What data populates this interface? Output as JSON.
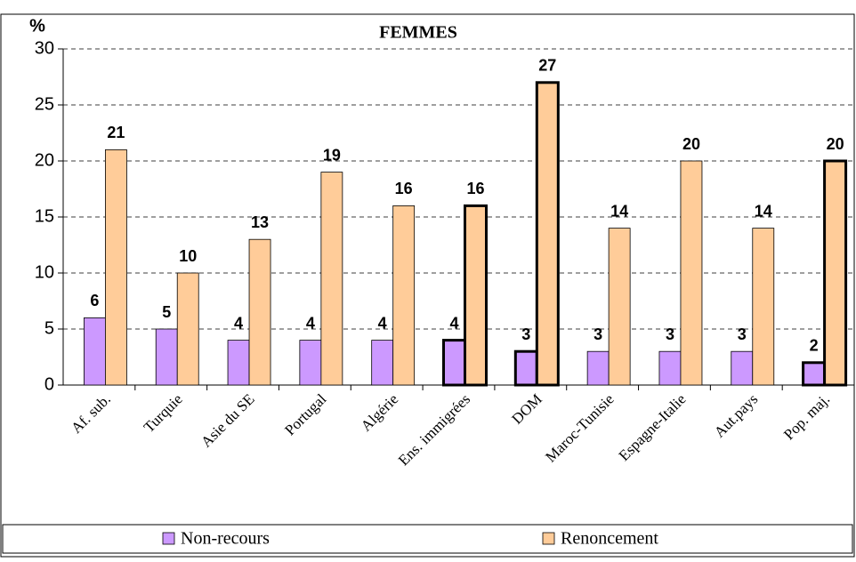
{
  "chart_data": {
    "type": "bar",
    "title": "FEMMES",
    "y_label": "%",
    "categories": [
      "Af. sub.",
      "Turquie",
      "Asie du SE",
      "Portugal",
      "Algérie",
      "Ens. immigrées",
      "DOM",
      "Maroc-Tunisie",
      "Espagne-Italie",
      "Aut.pays",
      "Pop. maj."
    ],
    "series": [
      {
        "name": "Non-recours",
        "color": "#cc99ff",
        "values": [
          6,
          5,
          4,
          4,
          4,
          4,
          3,
          3,
          3,
          3,
          2
        ]
      },
      {
        "name": "Renoncement",
        "color": "#ffcc99",
        "values": [
          21,
          10,
          13,
          19,
          16,
          16,
          27,
          14,
          20,
          14,
          20
        ]
      }
    ],
    "outlined": [
      false,
      false,
      false,
      false,
      false,
      true,
      true,
      false,
      false,
      false,
      true
    ],
    "ylim": [
      0,
      30
    ],
    "yticks": [
      0,
      5,
      10,
      15,
      20,
      25,
      30
    ],
    "grid": true,
    "legend": "bottom"
  }
}
